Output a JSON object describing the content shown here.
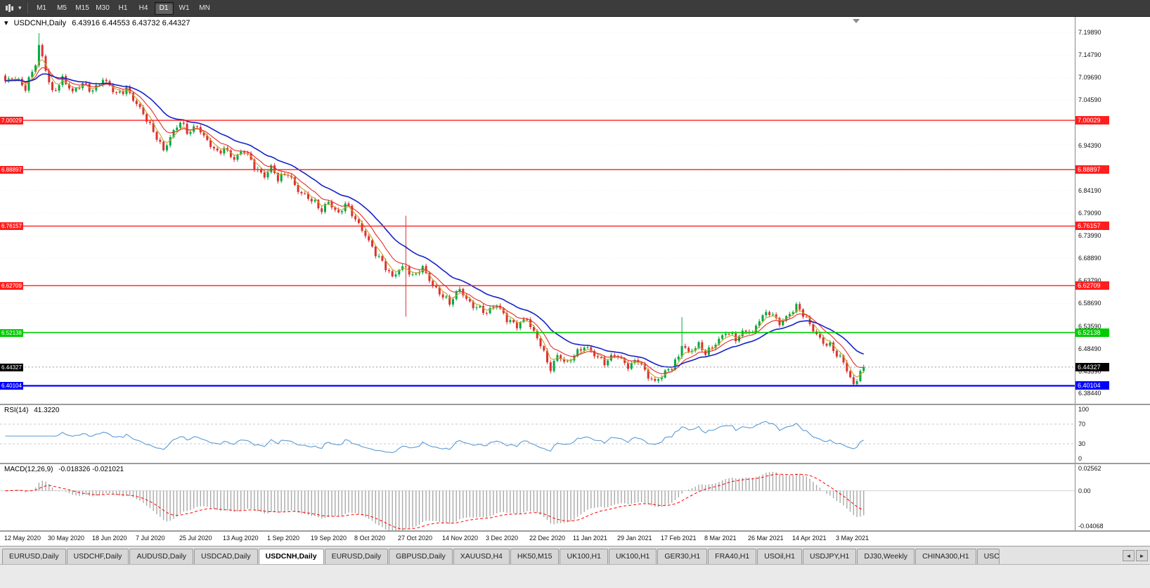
{
  "toolbar": {
    "timeframes": [
      "M1",
      "M5",
      "M15",
      "M30",
      "H1",
      "H4",
      "D1",
      "W1",
      "MN"
    ],
    "active_timeframe": "D1"
  },
  "chart_header": {
    "arrow_glyph": "▾",
    "title": "USDCNH,Daily",
    "ohlc": "6.43916 6.44553 6.43732 6.44327"
  },
  "chart_data": {
    "type": "candlestick",
    "symbol": "USDCNH",
    "timeframe": "Daily",
    "num_candles": 256,
    "last_close": 6.44327,
    "last_close_label": "6.44327",
    "price_ticks": [
      "7.19890",
      "7.14790",
      "7.09690",
      "7.04590",
      "6.99490",
      "6.94390",
      "6.89290",
      "6.84190",
      "6.79090",
      "6.73990",
      "6.68890",
      "6.63790",
      "6.58690",
      "6.53590",
      "6.48490",
      "6.43390",
      "6.38440"
    ],
    "h_lines": [
      {
        "price": 7.00029,
        "label": "7.00029",
        "color": "#ff1e1e",
        "width": 1.4
      },
      {
        "price": 6.88897,
        "label": "6.88897",
        "color": "#ff1e1e",
        "width": 1.4
      },
      {
        "price": 6.76157,
        "label": "6.76157",
        "color": "#ff1e1e",
        "width": 1.4
      },
      {
        "price": 6.62709,
        "label": "6.62709",
        "color": "#ff1e1e",
        "width": 1.4
      },
      {
        "price": 6.52138,
        "label": "6.52138",
        "color": "#00cc00",
        "width": 1.6
      },
      {
        "price": 6.40104,
        "label": "6.40104",
        "color": "#0000ff",
        "width": 2.2
      }
    ],
    "colors": {
      "up": "#00a843",
      "down": "#dc3232"
    },
    "ma_lines": [
      {
        "period": 4,
        "color": "#c9a227",
        "width": 1.1
      },
      {
        "period": 9,
        "color": "#e52b2b",
        "width": 1.1
      },
      {
        "period": 21,
        "color": "#1522c8",
        "width": 1.6
      }
    ],
    "close_anchors": [
      [
        0,
        7.085
      ],
      [
        3,
        7.1
      ],
      [
        6,
        7.075
      ],
      [
        9,
        7.125
      ],
      [
        10,
        7.165
      ],
      [
        12,
        7.115
      ],
      [
        14,
        7.065
      ],
      [
        17,
        7.095
      ],
      [
        20,
        7.06
      ],
      [
        23,
        7.085
      ],
      [
        26,
        7.07
      ],
      [
        29,
        7.09
      ],
      [
        33,
        7.06
      ],
      [
        36,
        7.075
      ],
      [
        39,
        7.035
      ],
      [
        42,
        7.0
      ],
      [
        45,
        6.965
      ],
      [
        47,
        6.935
      ],
      [
        49,
        6.96
      ],
      [
        52,
        6.995
      ],
      [
        54,
        6.975
      ],
      [
        57,
        6.99
      ],
      [
        60,
        6.95
      ],
      [
        63,
        6.925
      ],
      [
        65,
        6.94
      ],
      [
        68,
        6.915
      ],
      [
        71,
        6.93
      ],
      [
        74,
        6.895
      ],
      [
        77,
        6.878
      ],
      [
        79,
        6.895
      ],
      [
        81,
        6.865
      ],
      [
        84,
        6.88
      ],
      [
        87,
        6.845
      ],
      [
        90,
        6.825
      ],
      [
        92,
        6.81
      ],
      [
        94,
        6.795
      ],
      [
        96,
        6.82
      ],
      [
        99,
        6.79
      ],
      [
        101,
        6.81
      ],
      [
        104,
        6.775
      ],
      [
        107,
        6.745
      ],
      [
        110,
        6.7
      ],
      [
        113,
        6.665
      ],
      [
        115,
        6.645
      ],
      [
        117,
        6.668
      ],
      [
        119,
        6.672
      ],
      [
        121,
        6.645
      ],
      [
        124,
        6.665
      ],
      [
        127,
        6.63
      ],
      [
        130,
        6.605
      ],
      [
        132,
        6.585
      ],
      [
        135,
        6.618
      ],
      [
        138,
        6.59
      ],
      [
        141,
        6.575
      ],
      [
        143,
        6.562
      ],
      [
        146,
        6.585
      ],
      [
        149,
        6.555
      ],
      [
        152,
        6.535
      ],
      [
        155,
        6.55
      ],
      [
        157,
        6.522
      ],
      [
        159,
        6.5
      ],
      [
        161,
        6.455
      ],
      [
        162,
        6.438
      ],
      [
        164,
        6.465
      ],
      [
        167,
        6.452
      ],
      [
        169,
        6.475
      ],
      [
        172,
        6.49
      ],
      [
        175,
        6.468
      ],
      [
        178,
        6.455
      ],
      [
        181,
        6.475
      ],
      [
        183,
        6.458
      ],
      [
        185,
        6.44
      ],
      [
        188,
        6.462
      ],
      [
        191,
        6.425
      ],
      [
        193,
        6.408
      ],
      [
        195,
        6.42
      ],
      [
        198,
        6.445
      ],
      [
        200,
        6.47
      ],
      [
        201,
        6.498
      ],
      [
        203,
        6.475
      ],
      [
        206,
        6.49
      ],
      [
        208,
        6.475
      ],
      [
        211,
        6.5
      ],
      [
        214,
        6.52
      ],
      [
        217,
        6.505
      ],
      [
        220,
        6.53
      ],
      [
        222,
        6.522
      ],
      [
        224,
        6.55
      ],
      [
        227,
        6.565
      ],
      [
        230,
        6.545
      ],
      [
        232,
        6.558
      ],
      [
        235,
        6.578
      ],
      [
        237,
        6.56
      ],
      [
        239,
        6.54
      ],
      [
        241,
        6.52
      ],
      [
        243,
        6.5
      ],
      [
        245,
        6.49
      ],
      [
        247,
        6.468
      ],
      [
        249,
        6.455
      ],
      [
        251,
        6.422
      ],
      [
        252,
        6.405
      ],
      [
        253,
        6.418
      ],
      [
        254,
        6.436
      ],
      [
        255,
        6.44327
      ]
    ],
    "long_wick_candles": [
      {
        "i": 10,
        "high": 7.197
      },
      {
        "i": 119,
        "high": 6.785,
        "low": 6.557
      },
      {
        "i": 201,
        "high": 6.556
      }
    ]
  },
  "rsi_panel": {
    "label": "RSI(14)",
    "value": "41.3220",
    "axis_ticks": [
      100,
      70,
      30,
      0
    ],
    "levels": [
      70,
      30
    ],
    "color": "#5b9bd5"
  },
  "macd_panel": {
    "label": "MACD(12,26,9)",
    "values": "-0.018326 -0.021021",
    "axis_ticks": [
      0.02562,
      0.0,
      -0.04068
    ],
    "axis_tick_labels": [
      "0.02562",
      "0.00",
      "-0.04068"
    ],
    "ylim": [
      -0.04068,
      0.02562
    ],
    "histogram_color": "#a9a9a9",
    "signal_color": "#ff0000"
  },
  "date_axis": {
    "labels": [
      "12 May 2020",
      "30 May 2020",
      "18 Jun 2020",
      "7 Jul 2020",
      "25 Jul 2020",
      "13 Aug 2020",
      "1 Sep 2020",
      "19 Sep 2020",
      "8 Oct 2020",
      "27 Oct 2020",
      "14 Nov 2020",
      "3 Dec 2020",
      "22 Dec 2020",
      "11 Jan 2021",
      "29 Jan 2021",
      "17 Feb 2021",
      "8 Mar 2021",
      "26 Mar 2021",
      "14 Apr 2021",
      "3 May 2021"
    ]
  },
  "tabs": {
    "items": [
      "EURUSD,Daily",
      "USDCHF,Daily",
      "AUDUSD,Daily",
      "USDCAD,Daily",
      "USDCNH,Daily",
      "EURUSD,Daily",
      "GBPUSD,Daily",
      "XAUUSD,H4",
      "HK50,M15",
      "UK100,H1",
      "UK100,H1",
      "GER30,H1",
      "FRA40,H1",
      "USOil,H1",
      "USDJPY,H1",
      "DJ30,Weekly",
      "CHINA300,H1",
      "USC"
    ],
    "active_index": 4,
    "scroll_left_glyph": "◄",
    "scroll_right_glyph": "►"
  }
}
